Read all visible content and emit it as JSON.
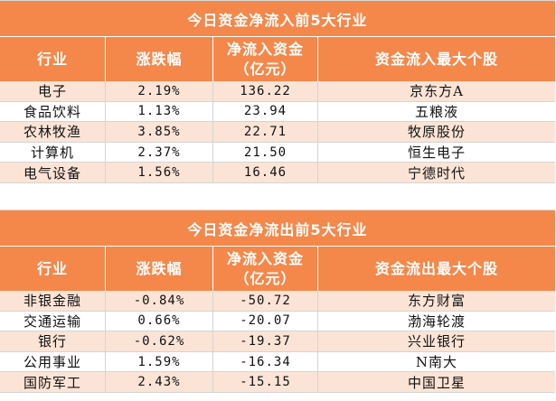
{
  "inflow": {
    "title": "今日资金净流入前5大行业",
    "headers": {
      "industry": "行业",
      "change": "涨跌幅",
      "netflow": "净流入资金（亿元）",
      "top_stock": "资金流入最大个股"
    },
    "rows": [
      {
        "industry": "电子",
        "change": "2.19%",
        "netflow": "136.22",
        "top_stock": "京东方A"
      },
      {
        "industry": "食品饮料",
        "change": "1.13%",
        "netflow": "23.94",
        "top_stock": "五粮液"
      },
      {
        "industry": "农林牧渔",
        "change": "3.85%",
        "netflow": "22.71",
        "top_stock": "牧原股份"
      },
      {
        "industry": "计算机",
        "change": "2.37%",
        "netflow": "21.50",
        "top_stock": "恒生电子"
      },
      {
        "industry": "电气设备",
        "change": "1.56%",
        "netflow": "16.46",
        "top_stock": "宁德时代"
      }
    ]
  },
  "outflow": {
    "title": "今日资金净流出前5大行业",
    "headers": {
      "industry": "行业",
      "change": "涨跌幅",
      "netflow": "净流入资金（亿元）",
      "top_stock": "资金流出最大个股"
    },
    "rows": [
      {
        "industry": "非银金融",
        "change": "-0.84%",
        "netflow": "-50.72",
        "top_stock": "东方财富"
      },
      {
        "industry": "交通运输",
        "change": "0.66%",
        "netflow": "-20.07",
        "top_stock": "渤海轮渡"
      },
      {
        "industry": "银行",
        "change": "-0.62%",
        "netflow": "-19.37",
        "top_stock": "兴业银行"
      },
      {
        "industry": "公用事业",
        "change": "1.59%",
        "netflow": "-16.34",
        "top_stock": "N南大"
      },
      {
        "industry": "国防军工",
        "change": "2.43%",
        "netflow": "-15.15",
        "top_stock": "中国卫星"
      }
    ]
  },
  "colors": {
    "header_bg": "#f4884b",
    "stripe_bg": "#fbe4d6",
    "header_text": "#ffffff"
  }
}
